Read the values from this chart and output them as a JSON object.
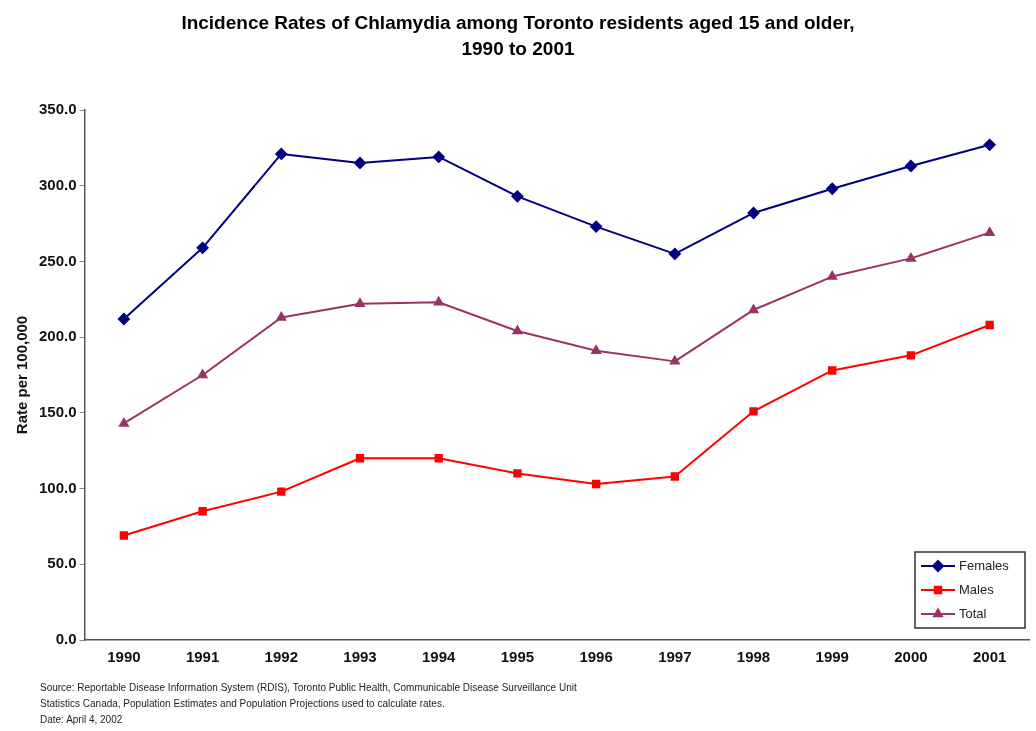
{
  "chart_data": {
    "type": "line",
    "title": "Incidence Rates of Chlamydia among Toronto residents aged 15 and older, 1990 to 2001",
    "ylabel": "Rate per 100,000",
    "categories": [
      "1990",
      "1991",
      "1992",
      "1993",
      "1994",
      "1995",
      "1996",
      "1997",
      "1998",
      "1999",
      "2000",
      "2001"
    ],
    "series": [
      {
        "name": "Females",
        "color": "#000080",
        "marker": "diamond",
        "values": [
          212,
          259,
          321,
          315,
          319,
          293,
          273,
          255,
          282,
          298,
          313,
          327
        ]
      },
      {
        "name": "Males",
        "color": "#ff0000",
        "marker": "square",
        "values": [
          69,
          85,
          98,
          120,
          120,
          110,
          103,
          108,
          151,
          178,
          188,
          208
        ]
      },
      {
        "name": "Total",
        "color": "#993366",
        "marker": "triangle",
        "values": [
          143,
          175,
          213,
          222,
          223,
          204,
          191,
          184,
          218,
          240,
          252,
          269
        ]
      }
    ],
    "ylim": [
      0,
      350
    ],
    "yticks": [
      {
        "value": 0,
        "label": "0.0"
      },
      {
        "value": 50,
        "label": "50.0"
      },
      {
        "value": 100,
        "label": "100.0"
      },
      {
        "value": 150,
        "label": "150.0"
      },
      {
        "value": 200,
        "label": "200.0"
      },
      {
        "value": 250,
        "label": "250.0"
      },
      {
        "value": 300,
        "label": "300.0"
      },
      {
        "value": 350,
        "label": "350.0"
      }
    ],
    "grid": false,
    "legend": "bottom right",
    "line_style": "solid",
    "annotations": [
      "Source: Reportable Disease Information System (RDIS), Toronto Public Health, Communicable Disease Surveillance Unit",
      "Statistics Canada, Population Estimates and Population Projections used to calculate rates.",
      "Date: April 4, 2002"
    ]
  }
}
